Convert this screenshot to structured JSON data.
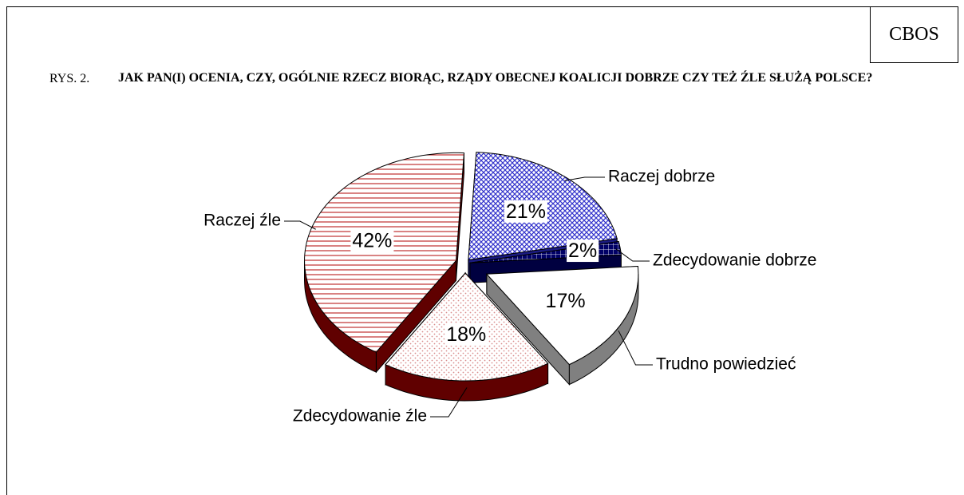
{
  "header": {
    "source": "CBOS",
    "figure_number": "RYS. 2.",
    "title": "JAK PAN(I) OCENIA, CZY, OGÓLNIE RZECZ BIORĄC, RZĄDY OBECNEJ KOALICJI DOBRZE CZY TEŻ ŹLE SŁUŻĄ POLSCE?"
  },
  "chart_data": {
    "type": "pie",
    "categories": [
      "Raczej dobrze",
      "Zdecydowanie dobrze",
      "Trudno powiedzieć",
      "Zdecydowanie źle",
      "Raczej źle"
    ],
    "values": [
      21,
      2,
      17,
      18,
      42
    ],
    "value_labels": [
      "21%",
      "2%",
      "17%",
      "18%",
      "42%"
    ],
    "colors": [
      "#3333cc",
      "#000066",
      "#ffffff",
      "#d98c8c",
      "#c03030"
    ],
    "side_colors": [
      "#1a1a80",
      "#000040",
      "#808080",
      "#600000",
      "#600000"
    ]
  }
}
